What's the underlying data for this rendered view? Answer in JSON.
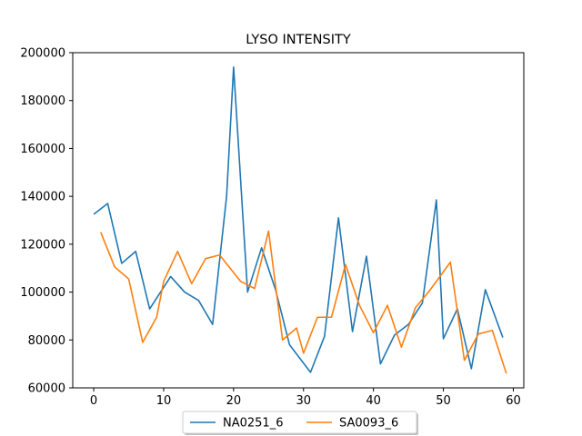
{
  "chart_data": {
    "type": "line",
    "title": "LYSO INTENSITY",
    "xlabel": "",
    "ylabel": "",
    "xlim": [
      -3,
      61.5
    ],
    "ylim": [
      60000,
      200000
    ],
    "x_ticks": [
      0,
      10,
      20,
      30,
      40,
      50,
      60
    ],
    "y_ticks": [
      60000,
      80000,
      100000,
      120000,
      140000,
      160000,
      180000,
      200000
    ],
    "grid": false,
    "legend_position": "bottom-center",
    "series": [
      {
        "name": "NA0251_6",
        "color": "#1f77b4",
        "x": [
          0,
          2,
          4,
          6,
          8,
          11,
          13,
          15,
          17,
          19,
          20,
          22,
          24,
          26,
          28,
          31,
          33,
          35,
          37,
          39,
          41,
          43,
          45,
          47,
          49,
          50,
          52,
          54,
          56,
          58.5
        ],
        "y": [
          132500,
          137000,
          112000,
          117000,
          93000,
          106500,
          100000,
          96500,
          86500,
          140000,
          194000,
          100000,
          118500,
          101000,
          78000,
          66500,
          81500,
          131000,
          83500,
          115000,
          70000,
          82000,
          86500,
          95500,
          138500,
          80500,
          93000,
          68000,
          101000,
          81000
        ]
      },
      {
        "name": "SA0093_6",
        "color": "#ff7f0e",
        "x": [
          1,
          3,
          5,
          7,
          9,
          10,
          12,
          14,
          16,
          18,
          21,
          23,
          25,
          27,
          29,
          30,
          32,
          34,
          36,
          38,
          40,
          42,
          44,
          46,
          48,
          51,
          53,
          55,
          57,
          59
        ],
        "y": [
          125000,
          110500,
          105500,
          79000,
          89500,
          104500,
          117000,
          103500,
          114000,
          115500,
          104500,
          101500,
          125500,
          80000,
          85000,
          74500,
          89500,
          89500,
          111500,
          94500,
          83000,
          94500,
          77000,
          93500,
          100500,
          112500,
          71500,
          82500,
          84000,
          66000
        ]
      }
    ]
  }
}
